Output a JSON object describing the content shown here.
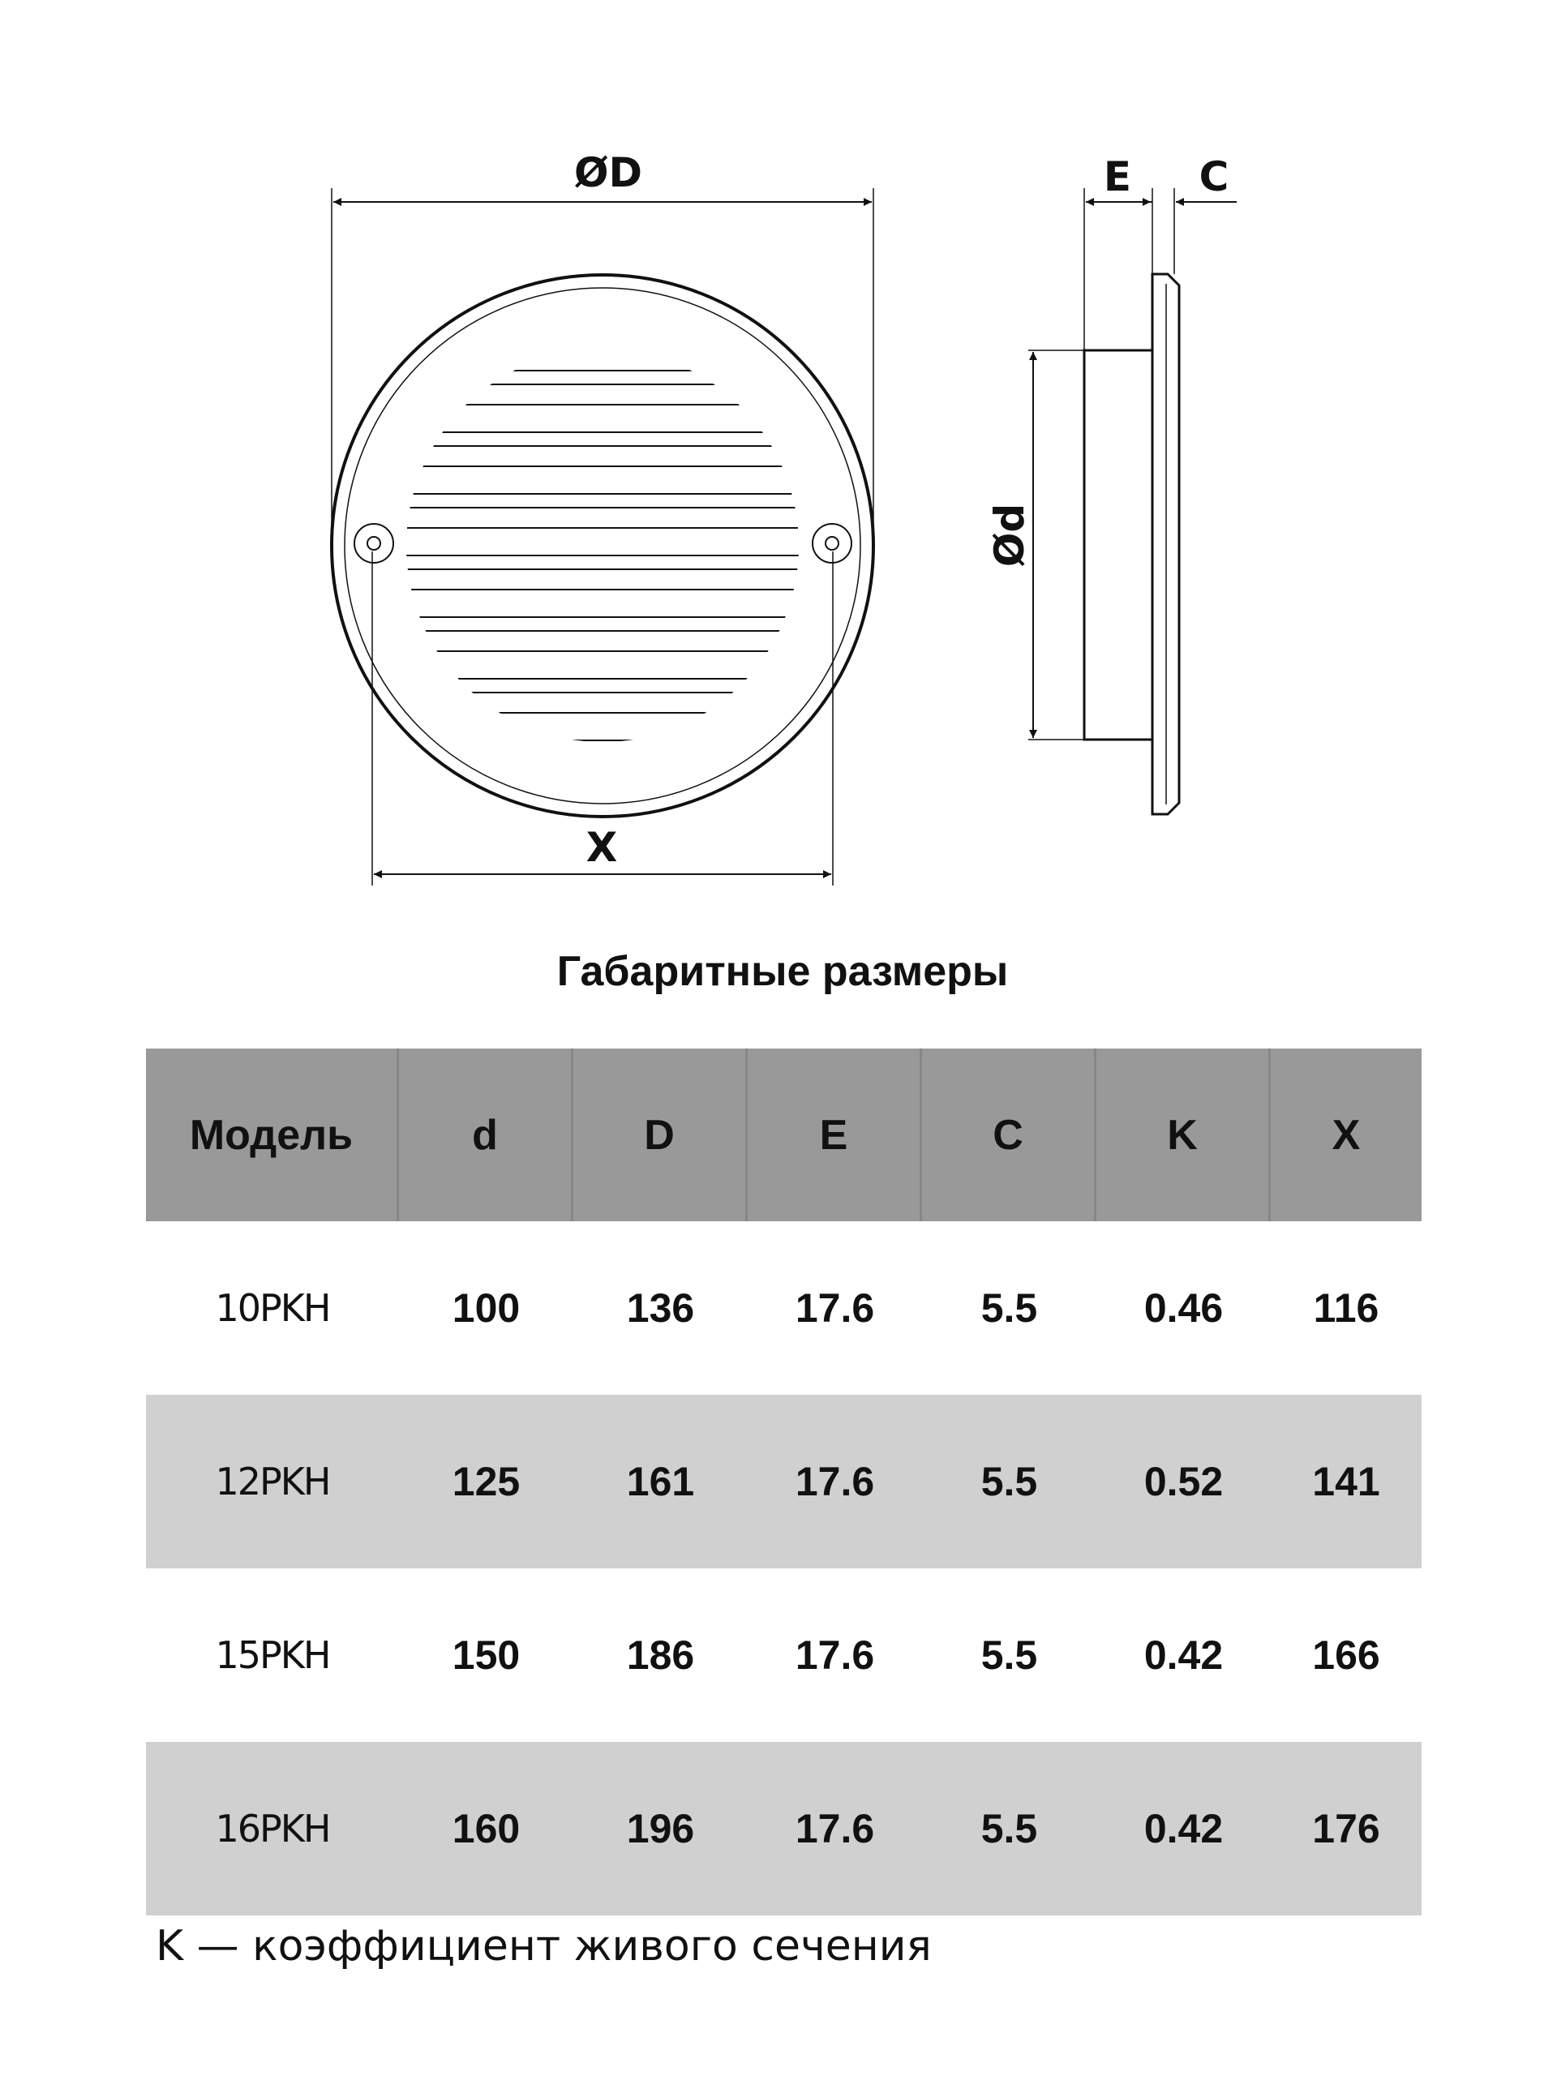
{
  "drawing": {
    "label_outer_diameter": "ØD",
    "label_hole_spacing": "X",
    "label_inner_diameter": "Ød",
    "label_collar_depth": "E",
    "label_flange_thickness": "C"
  },
  "title": "Габаритные размеры",
  "table": {
    "headers": [
      "Модель",
      "d",
      "D",
      "E",
      "C",
      "K",
      "X"
    ],
    "rows": [
      [
        "10PKH",
        "100",
        "136",
        "17.6",
        "5.5",
        "0.46",
        "116"
      ],
      [
        "12PKH",
        "125",
        "161",
        "17.6",
        "5.5",
        "0.52",
        "141"
      ],
      [
        "15PKH",
        "150",
        "186",
        "17.6",
        "5.5",
        "0.42",
        "166"
      ],
      [
        "16PKH",
        "160",
        "196",
        "17.6",
        "5.5",
        "0.42",
        "176"
      ]
    ]
  },
  "footnote": "K — коэффициент живого сечения"
}
